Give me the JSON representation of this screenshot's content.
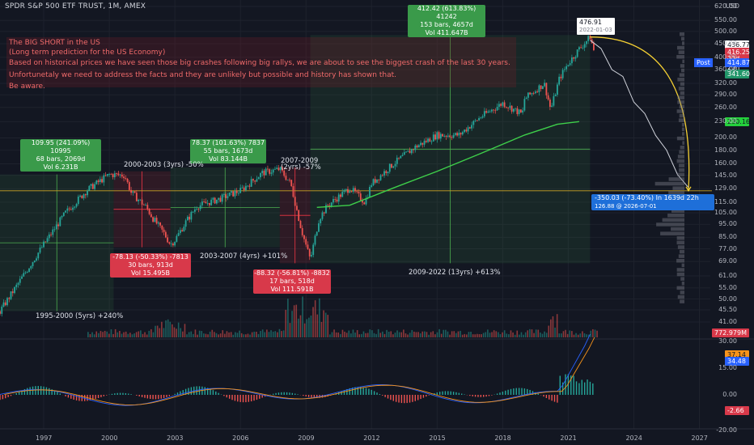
{
  "header": {
    "title": "SPDR S&P 500 ETF TRUST, 1M, AMEX"
  },
  "currency": "USD",
  "note": {
    "lines": [
      "The BIG SHORT in the US",
      "(Long term prediction for the US Economy)",
      "Based on historical prices we have seen those big crashes following  big rallys, we are about to see the biggest crash of the last 30 years.",
      "Unfortunetaly we need to address the facts and they are unlikely but possible and history has shown that.",
      "Be aware."
    ]
  },
  "annotations": [
    {
      "id": "up-1995",
      "color": "green",
      "lines": [
        "109.95 (241.09%) 10995",
        "68 bars, 2069d",
        "Vol 6.231B"
      ]
    },
    {
      "id": "down-2000",
      "color": "red",
      "lines": [
        "-78.13 (-50.33%) -7813",
        "30 bars, 913d",
        "Vol 15.495B"
      ]
    },
    {
      "id": "up-2003",
      "color": "green",
      "lines": [
        "78.37 (101.63%) 7837",
        "55 bars, 1673d",
        "Vol 83.144B"
      ]
    },
    {
      "id": "down-2007",
      "color": "red",
      "lines": [
        "-88.32 (-56.81%) -8832",
        "17 bars, 518d",
        "Vol 111.591B"
      ]
    },
    {
      "id": "up-2009",
      "color": "green",
      "lines": [
        "412.42 (613.83%) 41242",
        "153 bars, 4657d",
        "Vol 411.647B"
      ]
    },
    {
      "id": "projection",
      "color": "blue",
      "lines": [
        "-350.03 (-73.40%) In 1639d 22h",
        "126.88 @ 2026-07-01"
      ]
    }
  ],
  "period_labels": [
    "2000-2003 (3yrs) -50%",
    "2007-2009",
    "(2yrs) -57%",
    "2003-2007 (4yrs) +101%",
    "1995-2000 (5yrs) +240%",
    "2009-2022 (13yrs) +613%"
  ],
  "peak_label": {
    "value": "476.91",
    "date": "2022-01-03"
  },
  "price_tags": [
    {
      "text": "436.77",
      "color": "#ffffff",
      "fg": "#131722"
    },
    {
      "text": "416.25",
      "color": "#d8394a",
      "fg": "#ffffff"
    },
    {
      "text": "22d 23h",
      "color": "#d8394a",
      "fg": "#ffffff"
    },
    {
      "text": "414.87",
      "color": "#2962ff",
      "fg": "#ffffff"
    },
    {
      "text": "341.60",
      "color": "#22966a",
      "fg": "#ffffff"
    },
    {
      "text": "230.16",
      "color": "#24d13c",
      "fg": "#131722"
    },
    {
      "text": "772.979M",
      "color": "#d8394a",
      "fg": "#ffffff"
    },
    {
      "text": "37.14",
      "color": "#f7931a",
      "fg": "#131722"
    },
    {
      "text": "34.48",
      "color": "#2962ff",
      "fg": "#ffffff"
    },
    {
      "text": "-2.66",
      "color": "#d8394a",
      "fg": "#ffffff"
    }
  ],
  "post_label": "Post",
  "chart_data": {
    "type": "line",
    "price_axis_ticks": [
      620,
      550,
      500,
      450,
      400,
      360,
      320,
      290,
      260,
      230,
      200,
      180,
      160,
      145,
      129,
      115,
      105,
      95,
      85,
      77,
      69,
      61,
      55,
      50,
      45.5,
      41
    ],
    "price_axis_labels": [
      "620.00",
      "550.00",
      "500.00",
      "450.00",
      "400.00",
      "360.00",
      "320.00",
      "290.00",
      "260.00",
      "230.00",
      "200.00",
      "180.00",
      "160.00",
      "145.00",
      "129.00",
      "115.00",
      "105.00",
      "95.00",
      "85.00",
      "77.00",
      "69.00",
      "61.00",
      "55.00",
      "50.00",
      "45.50",
      "41.00"
    ],
    "macd_axis_labels": [
      "30.00",
      "15.00",
      "0.00",
      "-20.00"
    ],
    "macd_axis_ticks": [
      30,
      15,
      0,
      -20
    ],
    "x_ticks": [
      "1997",
      "2000",
      "2003",
      "2006",
      "2009",
      "2012",
      "2015",
      "2018",
      "2021",
      "2024",
      "2027"
    ],
    "price_series": [
      [
        1995,
        45
      ],
      [
        1996,
        60
      ],
      [
        1997,
        80
      ],
      [
        1998,
        105
      ],
      [
        1999,
        128
      ],
      [
        2000,
        146
      ],
      [
        2000.7,
        145
      ],
      [
        2001,
        125
      ],
      [
        2001.7,
        110
      ],
      [
        2002,
        100
      ],
      [
        2002.5,
        88
      ],
      [
        2002.8,
        80
      ],
      [
        2003,
        83
      ],
      [
        2003.5,
        97
      ],
      [
        2004,
        111
      ],
      [
        2005,
        118
      ],
      [
        2006,
        127
      ],
      [
        2007,
        148
      ],
      [
        2007.8,
        153
      ],
      [
        2008.3,
        135
      ],
      [
        2008.8,
        90
      ],
      [
        2009.2,
        70
      ],
      [
        2009.6,
        100
      ],
      [
        2010,
        112
      ],
      [
        2011,
        130
      ],
      [
        2011.7,
        115
      ],
      [
        2012,
        135
      ],
      [
        2013,
        160
      ],
      [
        2014,
        185
      ],
      [
        2015,
        205
      ],
      [
        2016,
        205
      ],
      [
        2017,
        240
      ],
      [
        2018,
        270
      ],
      [
        2018.9,
        245
      ],
      [
        2019,
        280
      ],
      [
        2019.9,
        320
      ],
      [
        2020.2,
        255
      ],
      [
        2020.6,
        335
      ],
      [
        2021,
        380
      ],
      [
        2021.5,
        430
      ],
      [
        2022,
        476.91
      ],
      [
        2022.2,
        416.25
      ]
    ],
    "projection_series": [
      [
        2022,
        476.91
      ],
      [
        2022.5,
        420
      ],
      [
        2023,
        370
      ],
      [
        2023.5,
        330
      ],
      [
        2024,
        280
      ],
      [
        2024.5,
        240
      ],
      [
        2025,
        210
      ],
      [
        2025.5,
        175
      ],
      [
        2026,
        150
      ],
      [
        2026.5,
        126.88
      ]
    ],
    "ma_series": [
      [
        2009.5,
        110
      ],
      [
        2011,
        112
      ],
      [
        2013,
        130
      ],
      [
        2015,
        150
      ],
      [
        2017,
        175
      ],
      [
        2019,
        205
      ],
      [
        2020.5,
        225
      ],
      [
        2021.5,
        230.16
      ]
    ],
    "ylim": [
      41,
      620
    ],
    "xlim": [
      1995,
      2027.5
    ],
    "grid": true
  }
}
